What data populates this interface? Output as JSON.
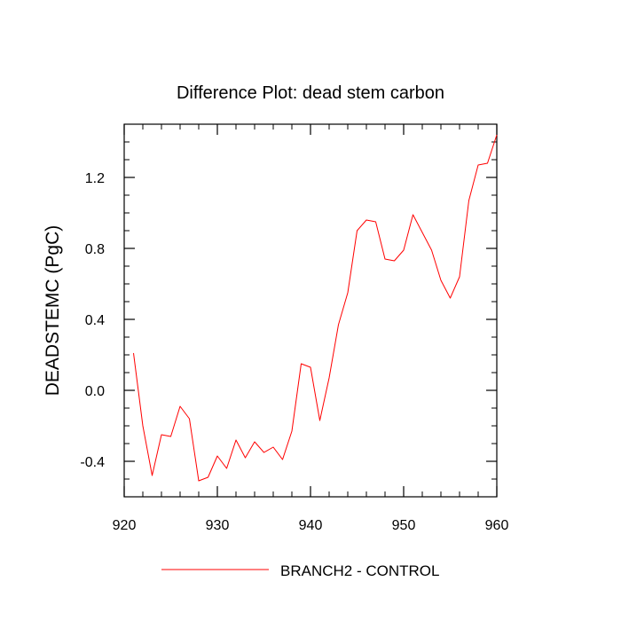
{
  "chart_data": {
    "type": "line",
    "title": "Difference Plot: dead stem carbon",
    "xlabel": "",
    "ylabel": "DEADSTEMC  (PgC)",
    "xlim": [
      920,
      960
    ],
    "ylim": [
      -0.6,
      1.5
    ],
    "xticks": [
      920,
      930,
      940,
      950,
      960
    ],
    "xtick_labels": [
      "920",
      "930",
      "940",
      "950",
      "960"
    ],
    "yticks": [
      -0.4,
      0.0,
      0.4,
      0.8,
      1.2
    ],
    "ytick_labels": [
      "-0.4",
      "0.0",
      "0.4",
      "0.8",
      "1.2"
    ],
    "x_minor_step": 2,
    "y_minor_step": 0.1,
    "grid": false,
    "legend_position": "bottom-center",
    "series": [
      {
        "name": "BRANCH2 - CONTROL",
        "color": "#ff0000",
        "x": [
          921,
          922,
          923,
          924,
          925,
          926,
          927,
          928,
          929,
          930,
          931,
          932,
          933,
          934,
          935,
          936,
          937,
          938,
          939,
          940,
          941,
          942,
          943,
          944,
          945,
          946,
          947,
          948,
          949,
          950,
          951,
          952,
          953,
          954,
          955,
          956,
          957,
          958,
          959,
          960
        ],
        "y": [
          0.21,
          -0.2,
          -0.48,
          -0.25,
          -0.26,
          -0.09,
          -0.16,
          -0.51,
          -0.49,
          -0.37,
          -0.44,
          -0.28,
          -0.38,
          -0.29,
          -0.35,
          -0.32,
          -0.39,
          -0.23,
          0.15,
          0.13,
          -0.17,
          0.07,
          0.37,
          0.55,
          0.9,
          0.96,
          0.95,
          0.74,
          0.73,
          0.79,
          0.99,
          0.89,
          0.79,
          0.62,
          0.52,
          0.64,
          1.07,
          1.27,
          1.28,
          1.44
        ]
      }
    ]
  }
}
